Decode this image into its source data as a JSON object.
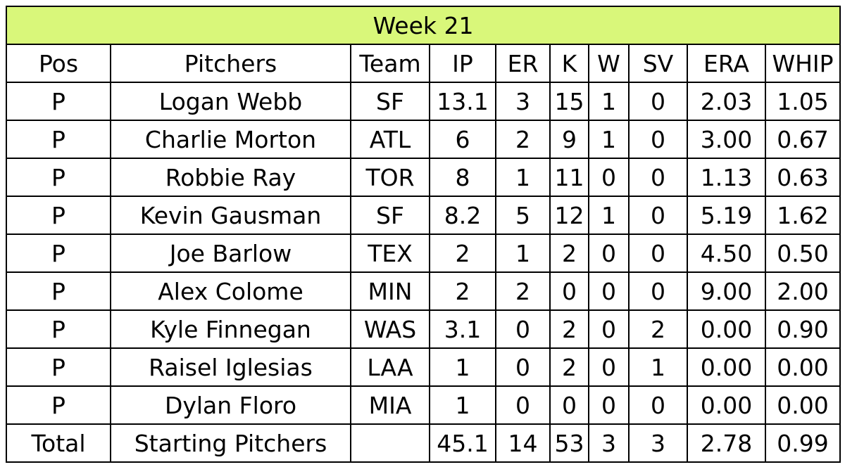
{
  "title": "Week 21",
  "title_bg": "#d9f77a",
  "columns": [
    "Pos",
    "Pitchers",
    "Team",
    "IP",
    "ER",
    "K",
    "W",
    "SV",
    "ERA",
    "WHIP"
  ],
  "rows": [
    [
      "P",
      "Logan Webb",
      "SF",
      "13.1",
      "3",
      "15",
      "1",
      "0",
      "2.03",
      "1.05"
    ],
    [
      "P",
      "Charlie Morton",
      "ATL",
      "6",
      "2",
      "9",
      "1",
      "0",
      "3.00",
      "0.67"
    ],
    [
      "P",
      "Robbie Ray",
      "TOR",
      "8",
      "1",
      "11",
      "0",
      "0",
      "1.13",
      "0.63"
    ],
    [
      "P",
      "Kevin Gausman",
      "SF",
      "8.2",
      "5",
      "12",
      "1",
      "0",
      "5.19",
      "1.62"
    ],
    [
      "P",
      "Joe Barlow",
      "TEX",
      "2",
      "1",
      "2",
      "0",
      "0",
      "4.50",
      "0.50"
    ],
    [
      "P",
      "Alex Colome",
      "MIN",
      "2",
      "2",
      "0",
      "0",
      "0",
      "9.00",
      "2.00"
    ],
    [
      "P",
      "Kyle Finnegan",
      "WAS",
      "3.1",
      "0",
      "2",
      "0",
      "2",
      "0.00",
      "0.90"
    ],
    [
      "P",
      "Raisel Iglesias",
      "LAA",
      "1",
      "0",
      "2",
      "0",
      "1",
      "0.00",
      "0.00"
    ],
    [
      "P",
      "Dylan Floro",
      "MIA",
      "1",
      "0",
      "0",
      "0",
      "0",
      "0.00",
      "0.00"
    ]
  ],
  "total": [
    "Total",
    "Starting Pitchers",
    "",
    "45.1",
    "14",
    "53",
    "3",
    "3",
    "2.78",
    "0.99"
  ]
}
